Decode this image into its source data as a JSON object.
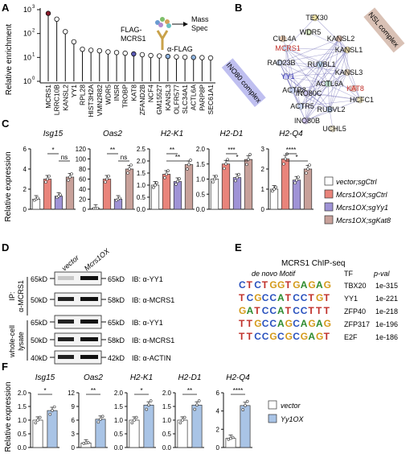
{
  "panels": {
    "A": {
      "label": "A",
      "ylabel": "Relative enrichment",
      "yticks": [
        "10",
        "10",
        "10",
        "10"
      ],
      "yexp": [
        "3",
        "2",
        "1",
        "0"
      ],
      "schematic": {
        "bait": "FLAG-MCRS1",
        "arrow_text": "Mass Spec",
        "antibody": "α-FLAG"
      }
    },
    "B": {
      "label": "B",
      "complex_labels": [
        "NSL complex",
        "INO80 complex"
      ],
      "nodes": [
        {
          "label": "TEX30"
        },
        {
          "label": "WDR5"
        },
        {
          "label": "CUL4A"
        },
        {
          "label": "MCRS1"
        },
        {
          "label": "KANSL2"
        },
        {
          "label": "KANSL1"
        },
        {
          "label": "RAD23B"
        },
        {
          "label": "RUVBL1"
        },
        {
          "label": "KANSL3"
        },
        {
          "label": "YY1"
        },
        {
          "label": "KAT8"
        },
        {
          "label": "ACTR8"
        },
        {
          "label": "ACTL6A"
        },
        {
          "label": "INO80C"
        },
        {
          "label": "HCFC1"
        },
        {
          "label": "ACTR5"
        },
        {
          "label": "RUBVL2"
        },
        {
          "label": "INO80B"
        },
        {
          "label": "UCHL5"
        }
      ]
    },
    "C": {
      "label": "C",
      "ylabel": "Relative expression",
      "legend": [
        "vector;sgCtrl",
        "Mcrs1OX;sgCtrl",
        "Mcrs1OX;sgYy1",
        "Mcrs1OX;sgKat8"
      ],
      "colors": [
        "#ffffff",
        "#e9847b",
        "#9f93d6",
        "#c8a19a"
      ]
    },
    "D": {
      "label": "D",
      "lanes": [
        "vector",
        "Mcrs1OX"
      ],
      "ip_label": "IP:",
      "ip_antibody": "α-MCRS1",
      "lysate_label": [
        "whole-cell",
        "lysate"
      ],
      "blots": [
        {
          "kd_left": "65kD",
          "kd_right": "65kD",
          "ib": "IB: α-YY1"
        },
        {
          "kd_left": "50kD",
          "kd_right": "58kD",
          "ib": "IB: α-MCRS1"
        },
        {
          "kd_left": "65kD",
          "kd_right": "65kD",
          "ib": "IB: α-YY1"
        },
        {
          "kd_left": "50kD",
          "kd_right": "58kD",
          "ib": "IB: α-MCRS1"
        },
        {
          "kd_left": "40kD",
          "kd_right": "42kD",
          "ib": "IB: α-ACTIN"
        }
      ]
    },
    "E": {
      "label": "E",
      "title": "MCRS1 ChIP-seq",
      "headers": [
        "de novo Motif",
        "TF",
        "p-val"
      ],
      "rows": [
        {
          "motif": "CTCTGGTGAGAG",
          "tf": "TBX20",
          "pval": "1e-315"
        },
        {
          "motif": "TCGCCATCCTGT",
          "tf": "YY1",
          "pval": "1e-221"
        },
        {
          "motif": "GATCCATCCTTT",
          "tf": "ZFP40",
          "pval": "1e-218"
        },
        {
          "motif": "TTGCCAGCAGAG",
          "tf": "ZFP317",
          "pval": "1e-196"
        },
        {
          "motif": "TTCCGCGCGAGT",
          "tf": "E2F",
          "pval": "1e-186"
        }
      ]
    },
    "F": {
      "label": "F",
      "ylabel": "Relative expression",
      "legend": [
        "vector",
        "Yy1OX"
      ],
      "colors": [
        "#ffffff",
        "#a9c4e6"
      ]
    }
  },
  "chart_data": [
    {
      "type": "scatter",
      "panel": "A",
      "ylabel": "Relative enrichment",
      "yscale": "log",
      "ylim": [
        1,
        1000
      ],
      "categories": [
        "MCRS1",
        "LRRC10B",
        "KANSL2",
        "YY1",
        "RPL28",
        "HIST3H2A",
        "VMN2R82",
        "WDR5",
        "INSR",
        "TROBP",
        "KAT8",
        "ZFAND2B",
        "NCF4",
        "GM15527",
        "KANSL3",
        "OLFR577",
        "SLC34A1",
        "ACTL6A",
        "PARP8P",
        "SEC61A1"
      ],
      "values": [
        700,
        400,
        120,
        45,
        22,
        20,
        19,
        17,
        16,
        15,
        14,
        13,
        12,
        11.5,
        11,
        10.5,
        10.2,
        10,
        9.8,
        9.5
      ],
      "point_colors": [
        "#8b1a2b",
        "#ffffff",
        "#ffffff",
        "#ffffff",
        "#ffffff",
        "#ffffff",
        "#ffffff",
        "#ffffff",
        "#ffffff",
        "#ffffff",
        "#5a5ab5",
        "#ffffff",
        "#ffffff",
        "#ffffff",
        "#8fb4e0",
        "#ffffff",
        "#ffffff",
        "#8fb4e0",
        "#ffffff",
        "#ffffff"
      ]
    },
    {
      "type": "bar",
      "panel": "C",
      "genes": [
        {
          "name": "Isg15",
          "ylim": [
            0,
            6
          ],
          "yticks": [
            0,
            2,
            4,
            6
          ],
          "values": [
            1.0,
            3.0,
            1.3,
            3.2
          ],
          "sig": [
            [
              "*",
              1,
              2
            ],
            [
              "ns",
              2,
              3
            ]
          ]
        },
        {
          "name": "Oas2",
          "ylim": [
            0,
            120
          ],
          "yticks": [
            0,
            20,
            40,
            60,
            80,
            100,
            120
          ],
          "values": [
            2,
            60,
            20,
            80
          ],
          "sig": [
            [
              "**",
              1,
              2
            ],
            [
              "ns",
              2,
              3
            ]
          ]
        },
        {
          "name": "H2-K1",
          "ylim": [
            0,
            2.5
          ],
          "yticks": [
            0,
            0.5,
            1.0,
            1.5,
            2.0,
            2.5
          ],
          "values": [
            1.0,
            1.45,
            1.15,
            1.85
          ],
          "sig": [
            [
              "**",
              1,
              2
            ],
            [
              "**",
              1,
              3
            ]
          ]
        },
        {
          "name": "H2-D1",
          "ylim": [
            0,
            2.0
          ],
          "yticks": [
            0,
            0.5,
            1.0,
            1.5,
            2.0
          ],
          "values": [
            1.0,
            1.5,
            1.05,
            1.65
          ],
          "sig": [
            [
              "***",
              1,
              2
            ],
            [
              "*",
              1,
              3
            ]
          ]
        },
        {
          "name": "H2-Q4",
          "ylim": [
            0,
            3
          ],
          "yticks": [
            0,
            1,
            2,
            3
          ],
          "values": [
            1.0,
            2.5,
            1.45,
            2.0
          ],
          "sig": [
            [
              "****",
              1,
              2
            ],
            [
              "*",
              1,
              3
            ]
          ]
        }
      ]
    },
    {
      "type": "bar",
      "panel": "F",
      "genes": [
        {
          "name": "Isg15",
          "ylim": [
            0,
            2.0
          ],
          "yticks": [
            0,
            0.5,
            1.0,
            1.5,
            2.0
          ],
          "values": [
            1.0,
            1.35
          ],
          "sig": "*"
        },
        {
          "name": "Oas2",
          "ylim": [
            0,
            12
          ],
          "yticks": [
            0,
            3,
            6,
            9,
            12
          ],
          "values": [
            1.0,
            6.2
          ],
          "sig": "**"
        },
        {
          "name": "H2-K1",
          "ylim": [
            0,
            2.0
          ],
          "yticks": [
            0,
            0.5,
            1.0,
            1.5,
            2.0
          ],
          "values": [
            1.0,
            1.55
          ],
          "sig": "*"
        },
        {
          "name": "H2-D1",
          "ylim": [
            0,
            2.0
          ],
          "yticks": [
            0,
            0.5,
            1.0,
            1.5,
            2.0
          ],
          "values": [
            1.0,
            1.55
          ],
          "sig": "**"
        },
        {
          "name": "H2-Q4",
          "ylim": [
            0,
            6.0
          ],
          "yticks": [
            0,
            2.0,
            4.0,
            6.0
          ],
          "values": [
            1.0,
            4.6
          ],
          "sig": "****"
        }
      ]
    }
  ]
}
